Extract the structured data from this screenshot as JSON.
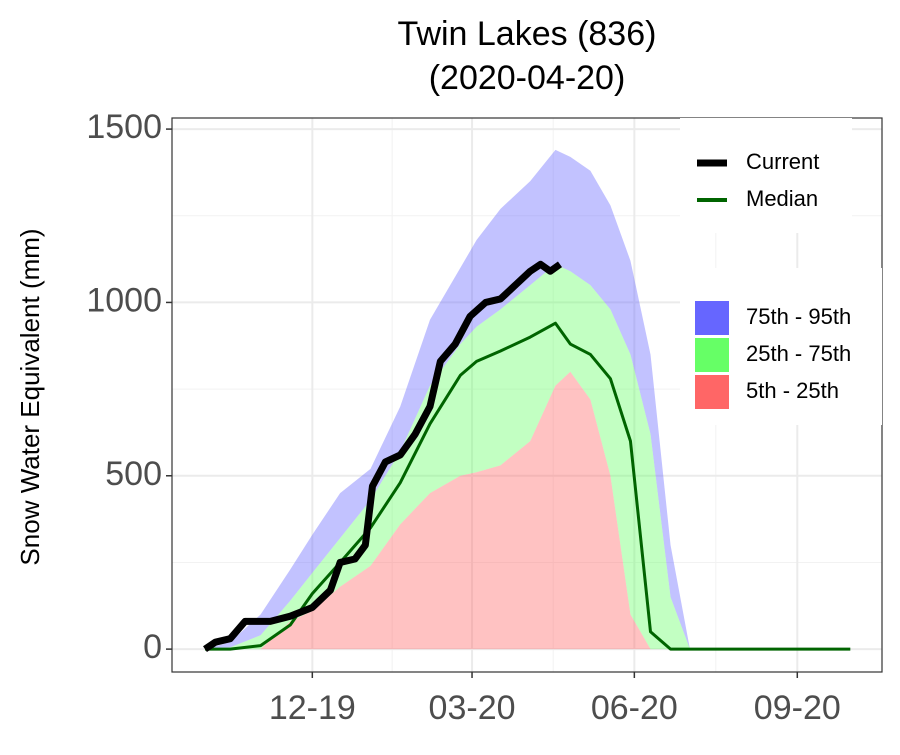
{
  "chart_data": {
    "type": "area-band",
    "title": "Twin Lakes (836)",
    "subtitle": "(2020-04-20)",
    "y_label": "Snow Water Equivalent (mm)",
    "x": [
      2019.751,
      2019.79,
      2019.837,
      2019.883,
      2019.917,
      2019.96,
      2020.007,
      2020.053,
      2020.099,
      2020.146,
      2020.171,
      2020.208,
      2020.254,
      2020.293,
      2020.316,
      2020.347,
      2020.378,
      2020.409,
      2020.44,
      2020.471,
      2020.501,
      2020.548,
      2020.61,
      2020.672,
      2020.749
    ],
    "bands": [
      {
        "name": "75th - 95th",
        "color": "#6666ff",
        "lower": [
          0,
          5,
          40,
          140,
          220,
          320,
          430,
          570,
          760,
          880,
          930,
          980,
          1050,
          1110,
          1090,
          1050,
          980,
          850,
          620,
          150,
          0,
          0,
          0,
          0,
          0
        ],
        "upper": [
          0,
          20,
          100,
          230,
          330,
          450,
          520,
          700,
          950,
          1100,
          1180,
          1270,
          1350,
          1440,
          1420,
          1380,
          1280,
          1120,
          850,
          300,
          0,
          0,
          0,
          0,
          0
        ]
      },
      {
        "name": "25th - 75th",
        "color": "#66ff66",
        "lower": [
          0,
          0,
          0,
          80,
          110,
          180,
          240,
          360,
          450,
          500,
          510,
          530,
          600,
          760,
          800,
          720,
          500,
          100,
          0,
          0,
          0,
          0,
          0,
          0,
          0
        ],
        "upper": [
          0,
          5,
          40,
          140,
          220,
          320,
          430,
          570,
          760,
          880,
          930,
          980,
          1050,
          1110,
          1090,
          1050,
          980,
          850,
          620,
          150,
          0,
          0,
          0,
          0,
          0
        ]
      },
      {
        "name": "5th - 25th",
        "color": "#ff6666",
        "lower": [
          0,
          0,
          0,
          0,
          0,
          0,
          0,
          0,
          0,
          0,
          0,
          0,
          0,
          0,
          0,
          0,
          0,
          0,
          0,
          0,
          0,
          0,
          0,
          0,
          0
        ],
        "upper": [
          0,
          0,
          0,
          80,
          110,
          180,
          240,
          360,
          450,
          500,
          510,
          530,
          600,
          760,
          800,
          720,
          500,
          100,
          0,
          0,
          0,
          0,
          0,
          0,
          0
        ]
      }
    ],
    "band_opacity": 0.4,
    "series": [
      {
        "name": "Current",
        "color": "#000000",
        "x": [
          2019.751,
          2019.767,
          2019.79,
          2019.813,
          2019.852,
          2019.883,
          2019.917,
          2019.945,
          2019.96,
          2019.983,
          2019.999,
          2020.01,
          2020.03,
          2020.053,
          2020.076,
          2020.099,
          2020.115,
          2020.138,
          2020.161,
          2020.185,
          2020.208,
          2020.231,
          2020.254,
          2020.27,
          2020.285,
          2020.3
        ],
        "values": [
          0,
          20,
          30,
          80,
          80,
          95,
          120,
          170,
          250,
          260,
          300,
          470,
          540,
          560,
          620,
          700,
          830,
          880,
          960,
          1000,
          1010,
          1050,
          1090,
          1110,
          1090,
          1110
        ]
      },
      {
        "name": "Median",
        "color": "#006400",
        "values": [
          0,
          0,
          10,
          70,
          160,
          250,
          350,
          480,
          650,
          790,
          830,
          860,
          900,
          940,
          880,
          850,
          780,
          600,
          50,
          0,
          0,
          0,
          0,
          0,
          0
        ]
      }
    ],
    "xlim": [
      2019.7,
      2020.798
    ],
    "ylim": [
      -66,
      1532
    ],
    "xticks": [
      {
        "value": 2019.917,
        "label": "12-19"
      },
      {
        "value": 2020.164,
        "label": "03-20"
      },
      {
        "value": 2020.415,
        "label": "06-20"
      },
      {
        "value": 2020.667,
        "label": "09-20"
      }
    ],
    "yticks": [
      0,
      500,
      1000,
      1500
    ],
    "grid": true
  }
}
